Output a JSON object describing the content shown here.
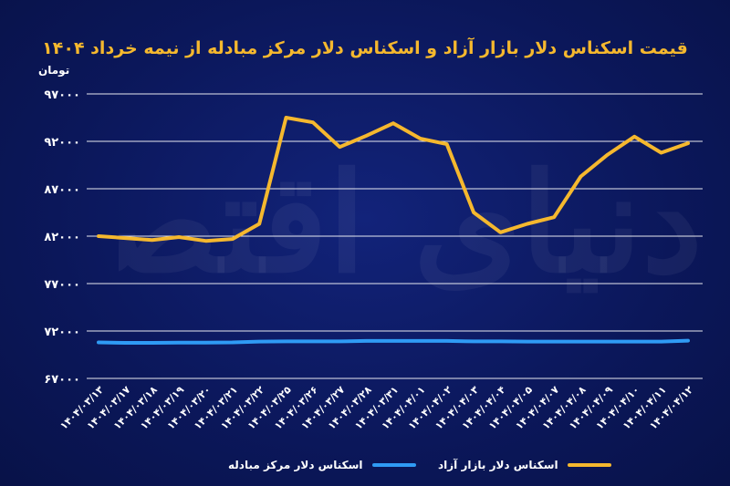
{
  "title": "قیمت اسکناس دلار بازار آزاد و اسکناس دلار مرکز مبادله از نیمه خرداد ۱۴۰۴",
  "watermark": "دنیای اقتصاد",
  "chart_data": {
    "type": "line",
    "ylabel": "تومان",
    "ylim": [
      67000,
      97000
    ],
    "yticks": [
      67000,
      72000,
      77000,
      82000,
      87000,
      92000,
      97000
    ],
    "ytick_labels": [
      "۶۷۰۰۰",
      "۷۲۰۰۰",
      "۷۷۰۰۰",
      "۸۲۰۰۰",
      "۸۷۰۰۰",
      "۹۲۰۰۰",
      "۹۷۰۰۰"
    ],
    "grid": true,
    "categories": [
      "۱۴۰۴/۰۳/۱۳",
      "۱۴۰۴/۰۳/۱۷",
      "۱۴۰۴/۰۳/۱۸",
      "۱۴۰۴/۰۳/۱۹",
      "۱۴۰۴/۰۳/۲۰",
      "۱۴۰۴/۰۳/۲۱",
      "۱۴۰۴/۰۳/۲۲",
      "۱۴۰۴/۰۳/۲۵",
      "۱۴۰۴/۰۳/۲۶",
      "۱۴۰۴/۰۳/۲۷",
      "۱۴۰۴/۰۳/۲۸",
      "۱۴۰۴/۰۳/۳۱",
      "۱۴۰۴/۰۴/۰۱",
      "۱۴۰۴/۰۴/۰۲",
      "۱۴۰۴/۰۴/۰۳",
      "۱۴۰۴/۰۴/۰۴",
      "۱۴۰۴/۰۴/۰۵",
      "۱۴۰۴/۰۴/۰۷",
      "۱۴۰۴/۰۴/۰۸",
      "۱۴۰۴/۰۴/۰۹",
      "۱۴۰۴/۰۴/۱۰",
      "۱۴۰۴/۰۴/۱۱",
      "۱۴۰۴/۰۴/۱۲"
    ],
    "series": [
      {
        "name": "اسکناس دلار بازار آزاد",
        "color": "#f5b82e",
        "values": [
          82000,
          81800,
          81600,
          81900,
          81500,
          81700,
          83300,
          94500,
          94000,
          91400,
          92600,
          93900,
          92300,
          91700,
          84500,
          82400,
          83300,
          84000,
          88300,
          90600,
          92500,
          90800,
          91800
        ]
      },
      {
        "name": "اسکناس دلار مرکز مبادله",
        "color": "#2f9bf5",
        "values": [
          70800,
          70750,
          70750,
          70780,
          70780,
          70800,
          70880,
          70900,
          70900,
          70900,
          70950,
          70950,
          70950,
          70950,
          70900,
          70900,
          70880,
          70880,
          70880,
          70880,
          70880,
          70880,
          70980
        ]
      }
    ],
    "legend_position": "bottom"
  }
}
